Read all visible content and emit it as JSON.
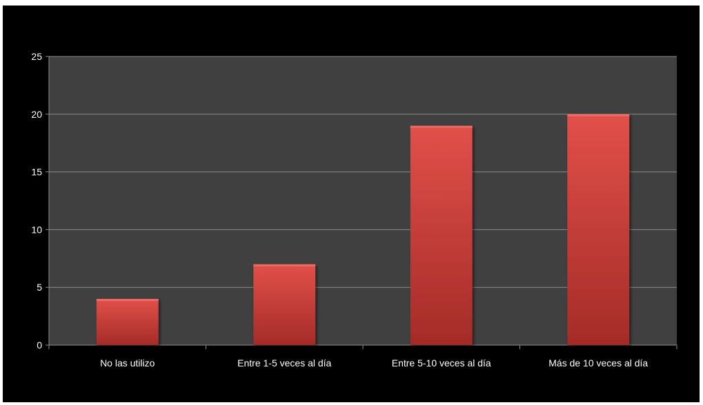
{
  "chart_data": {
    "type": "bar",
    "categories": [
      "No las utilizo",
      "Entre 1-5 veces al día",
      "Entre 5-10 veces al día",
      "Más de 10 veces al día"
    ],
    "values": [
      4,
      7,
      19,
      20
    ],
    "title": "",
    "xlabel": "",
    "ylabel": "",
    "ylim": [
      0,
      25
    ],
    "yticks": [
      0,
      5,
      10,
      15,
      20,
      25
    ],
    "ytick_labels": [
      "0",
      "5",
      "10",
      "15",
      "20",
      "25"
    ],
    "grid": true,
    "legend": "none",
    "colors": {
      "frame_background": "#000000",
      "plot_background": "#404040",
      "gridline": "#8c8c8c",
      "bar_light": "#e2504a",
      "bar_dark": "#a42b27",
      "text": "#ffffff"
    }
  }
}
